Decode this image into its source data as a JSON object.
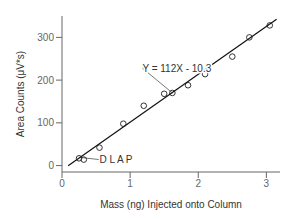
{
  "chart_data": {
    "type": "scatter",
    "title": "",
    "xlabel": "Mass (ng) Injected onto Column",
    "ylabel": "Area Counts (μV*s)",
    "xlim": [
      0,
      3.2
    ],
    "ylim": [
      -15,
      350
    ],
    "xticks": [
      0,
      1,
      2,
      3
    ],
    "yticks": [
      0,
      100,
      200,
      300
    ],
    "grid": false,
    "series": [
      {
        "type": "scatter",
        "marker": "open circle",
        "color": "#333333",
        "x": [
          0.25,
          0.32,
          0.55,
          0.9,
          1.2,
          1.5,
          1.62,
          1.85,
          2.1,
          2.5,
          2.75,
          3.05
        ],
        "values": [
          17,
          14,
          42,
          98,
          140,
          168,
          170,
          188,
          214,
          255,
          300,
          328
        ]
      },
      {
        "type": "line",
        "line_style": "solid",
        "color": "#111111",
        "x": [
          0.09,
          3.15
        ],
        "values": [
          -0.22,
          342.5
        ]
      }
    ],
    "annotations": [
      {
        "text": "Y = 112X - 10.3",
        "x": 1.18,
        "y": 228,
        "arrow_x": 1.62,
        "arrow_y": 170
      },
      {
        "text": "D L A P",
        "x": 0.55,
        "y": 14,
        "arrow_x": 0.27,
        "arrow_y": 19
      }
    ]
  }
}
